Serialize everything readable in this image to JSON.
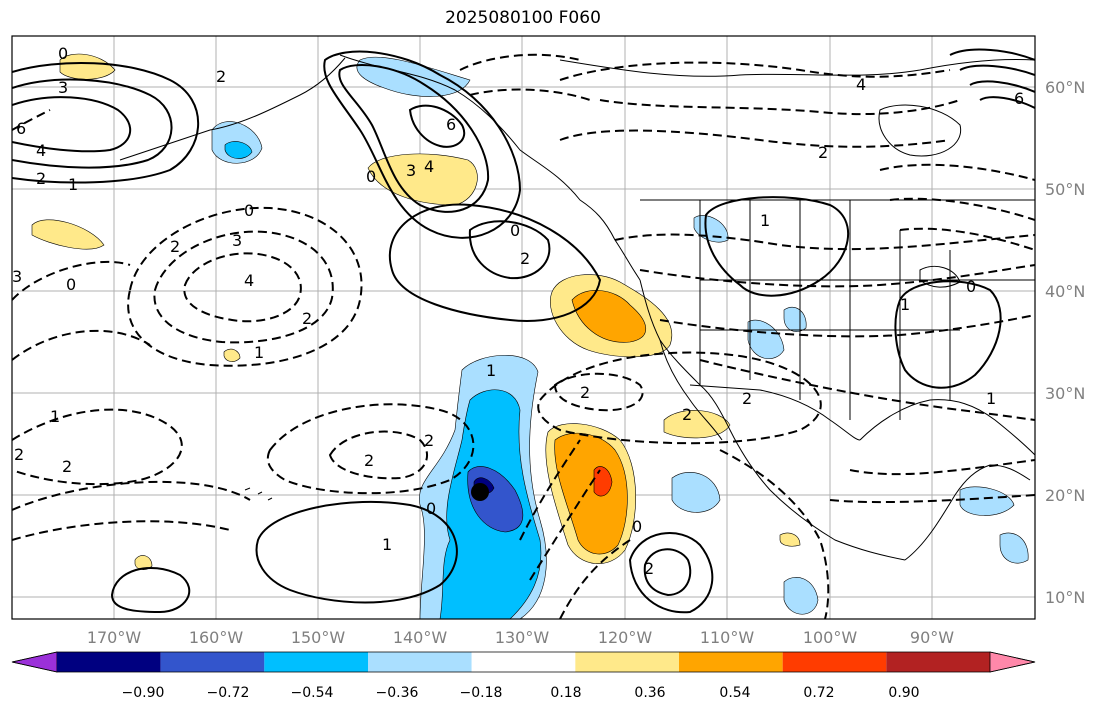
{
  "title": "2025080100 F060",
  "lon_labels": [
    "170°W",
    "160°W",
    "150°W",
    "140°W",
    "130°W",
    "120°W",
    "110°W",
    "100°W",
    "90°W"
  ],
  "lat_labels": [
    "60°N",
    "50°N",
    "40°N",
    "30°N",
    "20°N",
    "10°N"
  ],
  "colorbar": {
    "ticks": [
      "−0.90",
      "−0.72",
      "−0.54",
      "−0.36",
      "−0.18",
      "0.18",
      "0.36",
      "0.54",
      "0.72",
      "0.90"
    ],
    "colors": [
      "#9b30d9",
      "#000080",
      "#3355cc",
      "#00bfff",
      "#aadfff",
      "#ffffff",
      "#ffe98a",
      "#ffa500",
      "#ff3c00",
      "#b22222",
      "#ff88aa"
    ]
  },
  "contour_labels": [
    "0",
    "3",
    "6",
    "4",
    "2",
    "1",
    "0",
    "2",
    "6",
    "0",
    "3",
    "4",
    "3",
    "2",
    "0",
    "3",
    "4",
    "1",
    "2",
    "0",
    "1",
    "2",
    "1",
    "2",
    "2",
    "0",
    "1",
    "2",
    "2",
    "2",
    "2",
    "1",
    "0",
    "2",
    "1",
    "4",
    "6",
    "0",
    "2",
    "2",
    "1"
  ]
}
